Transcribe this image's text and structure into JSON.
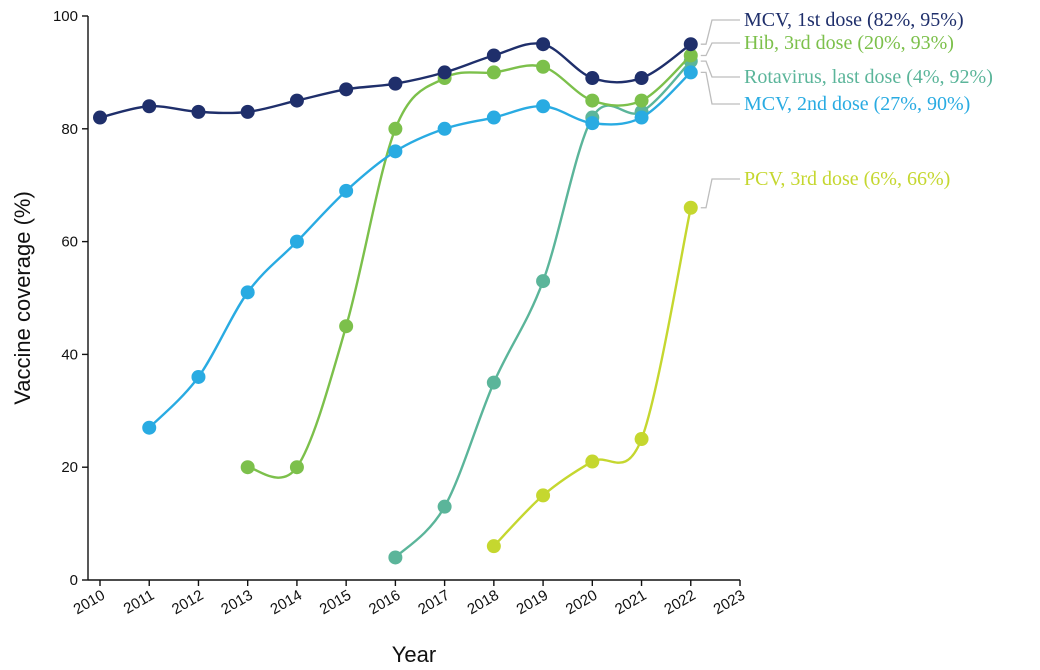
{
  "chart_data": {
    "type": "line",
    "title": "",
    "xlabel": "Year",
    "ylabel": "Vaccine coverage (%)",
    "xlim": [
      2010,
      2023
    ],
    "ylim": [
      0,
      100
    ],
    "x_ticks": [
      "2010",
      "2011",
      "2012",
      "2013",
      "2014",
      "2015",
      "2016",
      "2017",
      "2018",
      "2019",
      "2020",
      "2021",
      "2022",
      "2023"
    ],
    "y_ticks": [
      "0",
      "20",
      "40",
      "60",
      "80",
      "100"
    ],
    "grid": false,
    "legend": "direct labels at right of line ends",
    "series": [
      {
        "id": "mcv1",
        "name": "MCV, 1st dose (82%, 95%)",
        "color": "#1f2f6b",
        "x": [
          2010,
          2011,
          2012,
          2013,
          2014,
          2015,
          2016,
          2017,
          2018,
          2019,
          2020,
          2021,
          2022
        ],
        "values": [
          82,
          84,
          83,
          83,
          85,
          87,
          88,
          90,
          93,
          95,
          89,
          89,
          95
        ]
      },
      {
        "id": "hib3",
        "name": "Hib, 3rd dose (20%, 93%)",
        "color": "#7cc04b",
        "x": [
          2013,
          2014,
          2015,
          2016,
          2017,
          2018,
          2019,
          2020,
          2021,
          2022
        ],
        "values": [
          20,
          20,
          45,
          80,
          89,
          90,
          91,
          85,
          85,
          93
        ]
      },
      {
        "id": "rota",
        "name": "Rotavirus, last dose (4%, 92%)",
        "color": "#5bb59a",
        "x": [
          2016,
          2017,
          2018,
          2019,
          2020,
          2021,
          2022
        ],
        "values": [
          4,
          13,
          35,
          53,
          82,
          83,
          92
        ]
      },
      {
        "id": "mcv2",
        "name": "MCV, 2nd dose (27%, 90%)",
        "color": "#29abe2",
        "x": [
          2011,
          2012,
          2013,
          2014,
          2015,
          2016,
          2017,
          2018,
          2019,
          2020,
          2021,
          2022
        ],
        "values": [
          27,
          36,
          51,
          60,
          69,
          76,
          80,
          82,
          84,
          81,
          82,
          90
        ]
      },
      {
        "id": "pcv3",
        "name": "PCV, 3rd dose (6%, 66%)",
        "color": "#c5d72f",
        "x": [
          2018,
          2019,
          2020,
          2021,
          2022
        ],
        "values": [
          6,
          15,
          21,
          25,
          66
        ]
      }
    ]
  }
}
